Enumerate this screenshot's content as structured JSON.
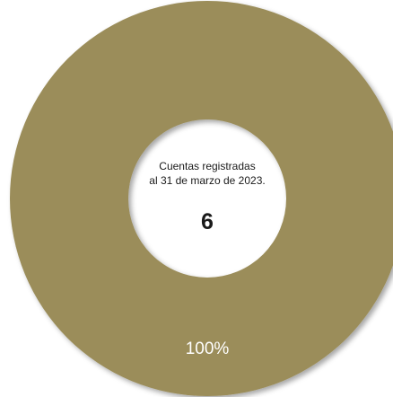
{
  "chart_data": {
    "type": "pie",
    "categories": [
      "Cuentas registradas"
    ],
    "values": [
      100
    ],
    "data_labels": [
      "100%"
    ],
    "colors": [
      "#9b8d5a"
    ],
    "legend": "none"
  },
  "center": {
    "line1": "Cuentas registradas",
    "line2": "al 31 de marzo de 2023.",
    "value": "6"
  }
}
